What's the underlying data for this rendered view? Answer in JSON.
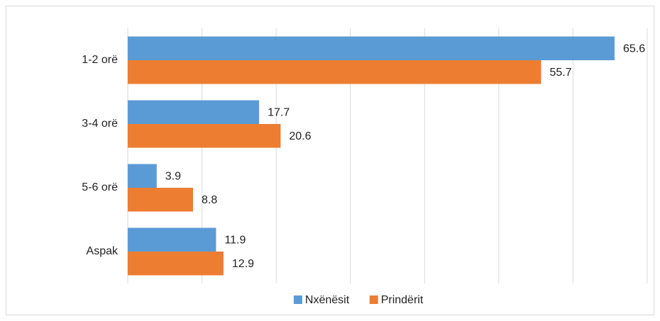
{
  "chart_data": {
    "type": "hbar",
    "categories": [
      "1-2 orë",
      "3-4 orë",
      "5-6 orë",
      "Aspak"
    ],
    "series": [
      {
        "name": "Nxënësit",
        "color": "#5b9bd5",
        "values": [
          65.6,
          17.7,
          3.9,
          11.9
        ]
      },
      {
        "name": "Prindërit",
        "color": "#ed7d31",
        "values": [
          55.7,
          20.6,
          8.8,
          12.9
        ]
      }
    ],
    "xlim": [
      0,
      70
    ],
    "xticks": [
      0,
      10,
      20,
      30,
      40,
      50,
      60,
      70
    ],
    "grid": true,
    "legend": "bottom"
  }
}
